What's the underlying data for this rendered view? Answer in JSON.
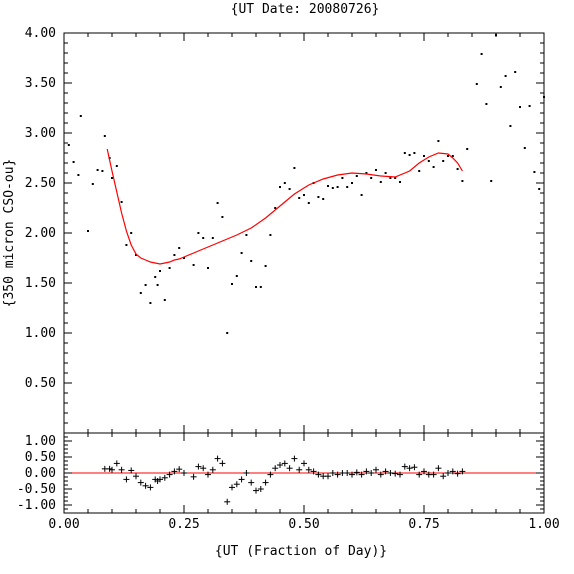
{
  "chart_data": [
    {
      "type": "scatter",
      "title": "{UT Date: 20080726}",
      "xlabel": "",
      "ylabel": "{350 micron CSO-ou}",
      "xlim": [
        0,
        1
      ],
      "ylim": [
        0,
        4
      ],
      "yticks": [
        "0.50",
        "1.00",
        "1.50",
        "2.00",
        "2.50",
        "3.00",
        "3.50",
        "4.00"
      ],
      "grid": false,
      "series": [
        {
          "kind": "points",
          "color": "#000000",
          "x": [
            0.01,
            0.02,
            0.03,
            0.035,
            0.05,
            0.06,
            0.07,
            0.08,
            0.085,
            0.095,
            0.1,
            0.11,
            0.12,
            0.13,
            0.14,
            0.15,
            0.16,
            0.17,
            0.18,
            0.19,
            0.195,
            0.2,
            0.21,
            0.22,
            0.23,
            0.24,
            0.25,
            0.27,
            0.28,
            0.29,
            0.3,
            0.31,
            0.32,
            0.33,
            0.34,
            0.35,
            0.36,
            0.37,
            0.38,
            0.39,
            0.4,
            0.41,
            0.42,
            0.43,
            0.44,
            0.45,
            0.46,
            0.47,
            0.48,
            0.49,
            0.5,
            0.51,
            0.52,
            0.53,
            0.54,
            0.55,
            0.56,
            0.57,
            0.58,
            0.59,
            0.6,
            0.61,
            0.62,
            0.63,
            0.64,
            0.65,
            0.66,
            0.67,
            0.68,
            0.69,
            0.7,
            0.71,
            0.72,
            0.73,
            0.74,
            0.75,
            0.76,
            0.77,
            0.78,
            0.79,
            0.8,
            0.81,
            0.82,
            0.83,
            0.84,
            0.86,
            0.87,
            0.88,
            0.89,
            0.9,
            0.91,
            0.92,
            0.93,
            0.94,
            0.95,
            0.96,
            0.97,
            0.98,
            0.99,
            1.0
          ],
          "y": [
            2.88,
            2.71,
            2.58,
            3.17,
            2.02,
            2.49,
            2.63,
            2.62,
            2.97,
            2.75,
            2.55,
            2.67,
            2.31,
            1.88,
            2.0,
            1.78,
            1.4,
            1.48,
            1.3,
            1.56,
            1.48,
            1.62,
            1.33,
            1.65,
            1.78,
            1.85,
            1.75,
            1.68,
            2.0,
            1.95,
            1.65,
            1.95,
            2.3,
            2.16,
            1.0,
            1.49,
            1.57,
            1.8,
            1.98,
            1.72,
            1.46,
            1.46,
            1.67,
            1.98,
            2.25,
            2.46,
            2.5,
            2.44,
            2.65,
            2.35,
            2.38,
            2.3,
            2.5,
            2.36,
            2.34,
            2.47,
            2.45,
            2.46,
            2.55,
            2.46,
            2.5,
            2.57,
            2.38,
            2.6,
            2.55,
            2.63,
            2.51,
            2.6,
            2.55,
            2.55,
            2.51,
            2.8,
            2.78,
            2.8,
            2.62,
            2.77,
            2.72,
            2.66,
            2.92,
            2.72,
            2.77,
            2.77,
            2.64,
            2.52,
            2.84,
            3.49,
            3.79,
            3.29,
            2.52,
            3.98,
            3.46,
            3.57,
            3.07,
            3.61,
            3.26,
            2.85,
            3.27,
            2.61,
            2.44,
            3.36
          ]
        },
        {
          "kind": "fit-line",
          "color": "#ff0000",
          "x": [
            0.09,
            0.1,
            0.11,
            0.12,
            0.13,
            0.14,
            0.15,
            0.16,
            0.17,
            0.18,
            0.19,
            0.2,
            0.21,
            0.22,
            0.23,
            0.24,
            0.25,
            0.27,
            0.3,
            0.33,
            0.36,
            0.39,
            0.42,
            0.45,
            0.48,
            0.51,
            0.54,
            0.57,
            0.6,
            0.63,
            0.66,
            0.69,
            0.72,
            0.74,
            0.76,
            0.78,
            0.8,
            0.81,
            0.82,
            0.83
          ],
          "y": [
            2.84,
            2.62,
            2.41,
            2.2,
            2.02,
            1.88,
            1.79,
            1.75,
            1.73,
            1.71,
            1.7,
            1.69,
            1.7,
            1.71,
            1.73,
            1.74,
            1.76,
            1.8,
            1.86,
            1.92,
            1.98,
            2.05,
            2.15,
            2.27,
            2.39,
            2.48,
            2.54,
            2.58,
            2.6,
            2.59,
            2.57,
            2.56,
            2.62,
            2.7,
            2.76,
            2.8,
            2.79,
            2.75,
            2.7,
            2.62
          ]
        }
      ]
    },
    {
      "type": "scatter",
      "title": "",
      "xlabel": "{UT (Fraction of Day)}",
      "ylabel": "",
      "xlim": [
        0,
        1
      ],
      "ylim": [
        -1.25,
        1.25
      ],
      "xticks": [
        "0.00",
        "0.25",
        "0.50",
        "0.75",
        "1.00"
      ],
      "yticks": [
        "-1.00",
        "-0.50",
        "0.00",
        "0.50",
        "1.00"
      ],
      "grid": false,
      "zero_line_color": "#ff0000",
      "series": [
        {
          "kind": "residuals",
          "color": "#000000",
          "marker": "plus",
          "x": [
            0.085,
            0.095,
            0.1,
            0.11,
            0.12,
            0.13,
            0.14,
            0.15,
            0.16,
            0.17,
            0.18,
            0.19,
            0.195,
            0.2,
            0.21,
            0.22,
            0.23,
            0.24,
            0.25,
            0.27,
            0.28,
            0.29,
            0.3,
            0.31,
            0.32,
            0.33,
            0.34,
            0.35,
            0.36,
            0.37,
            0.38,
            0.39,
            0.4,
            0.41,
            0.42,
            0.43,
            0.44,
            0.45,
            0.46,
            0.47,
            0.48,
            0.49,
            0.5,
            0.51,
            0.52,
            0.53,
            0.54,
            0.55,
            0.56,
            0.57,
            0.58,
            0.59,
            0.6,
            0.61,
            0.62,
            0.63,
            0.64,
            0.65,
            0.66,
            0.67,
            0.68,
            0.69,
            0.7,
            0.71,
            0.72,
            0.73,
            0.74,
            0.75,
            0.76,
            0.77,
            0.78,
            0.79,
            0.8,
            0.81,
            0.82,
            0.83
          ],
          "y": [
            0.13,
            0.13,
            0.1,
            0.3,
            0.1,
            -0.2,
            0.08,
            -0.1,
            -0.3,
            -0.4,
            -0.45,
            -0.2,
            -0.25,
            -0.2,
            -0.15,
            -0.05,
            0.05,
            0.12,
            0.0,
            -0.12,
            0.2,
            0.15,
            -0.05,
            0.1,
            0.45,
            0.3,
            -0.9,
            -0.45,
            -0.35,
            -0.2,
            0.0,
            -0.3,
            -0.55,
            -0.5,
            -0.3,
            -0.05,
            0.15,
            0.25,
            0.3,
            0.15,
            0.45,
            0.1,
            0.3,
            0.1,
            0.05,
            -0.05,
            -0.1,
            -0.1,
            0.0,
            -0.05,
            0.0,
            0.0,
            -0.05,
            0.02,
            -0.05,
            0.05,
            0.0,
            0.1,
            -0.05,
            0.05,
            0.0,
            -0.02,
            -0.05,
            0.2,
            0.15,
            0.18,
            -0.05,
            0.05,
            -0.05,
            -0.05,
            0.15,
            -0.1,
            0.0,
            0.05,
            -0.02,
            0.05
          ]
        }
      ]
    }
  ]
}
